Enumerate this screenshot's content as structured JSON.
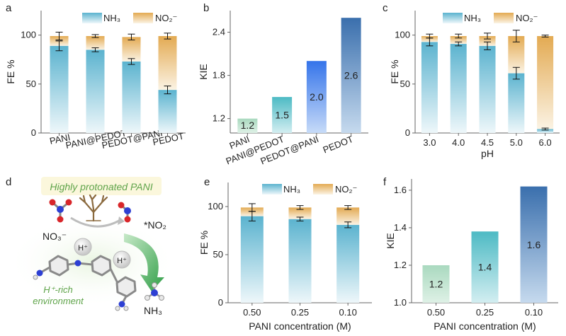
{
  "colors": {
    "nh3_top": "#5bb3cf",
    "nh3_bottom": "#e7f3f8",
    "no2_top": "#e3aa52",
    "no2_bottom": "#fbf1e0",
    "kie_green": "#bfe3cc",
    "kie_teal": "#5fc3c9",
    "kie_blue": "#3b7bea",
    "kie_navy": "#3f79b6",
    "arrow_green": "#3fae55",
    "text_green": "#5fa44a"
  },
  "panel_labels": {
    "a": "a",
    "b": "b",
    "c": "c",
    "d": "d",
    "e": "e",
    "f": "f"
  },
  "legend": {
    "nh3": "NH₃",
    "no2": "NO₂⁻"
  },
  "chart_data": [
    {
      "id": "a",
      "type": "bar",
      "stacked": true,
      "categories": [
        "PANI",
        "PANI@PEDOT",
        "PEDOT@PANI",
        "PEDOT"
      ],
      "series": [
        {
          "name": "NH3",
          "values": [
            89,
            85,
            73,
            44
          ],
          "errors": [
            5,
            2,
            3,
            4
          ]
        },
        {
          "name": "NO2-",
          "values": [
            10,
            14,
            25,
            55
          ],
          "errors": [
            4,
            1.5,
            3,
            3
          ]
        }
      ],
      "ylabel": "FE %",
      "xlabel": "",
      "ylim": [
        0,
        125
      ],
      "yticks": [
        "0",
        "50",
        "100"
      ],
      "legend": "top"
    },
    {
      "id": "b",
      "type": "bar",
      "categories": [
        "PANI",
        "PANI@PEDOT",
        "PEDOT@PANI",
        "PEDOT"
      ],
      "values": [
        1.2,
        1.5,
        2.0,
        2.6
      ],
      "labels": [
        "1.2",
        "1.5",
        "2.0",
        "2.6"
      ],
      "ylabel": "KIE",
      "xlabel": "",
      "ylim": [
        1.0,
        2.7
      ],
      "yticks": [
        "1.2",
        "1.8",
        "2.4"
      ]
    },
    {
      "id": "c",
      "type": "bar",
      "stacked": true,
      "categories": [
        "3.0",
        "4.0",
        "4.5",
        "5.0",
        "6.0"
      ],
      "series": [
        {
          "name": "NH3",
          "values": [
            93,
            91,
            89,
            61,
            4
          ],
          "errors": [
            4,
            2,
            4,
            6,
            1
          ]
        },
        {
          "name": "NO2-",
          "values": [
            6,
            8,
            10,
            38,
            95
          ],
          "errors": [
            2,
            2,
            3,
            6,
            1
          ]
        }
      ],
      "ylabel": "FE %",
      "xlabel": "pH",
      "ylim": [
        0,
        125
      ],
      "yticks": [
        "0",
        "50",
        "100"
      ],
      "legend": "top"
    },
    {
      "id": "e",
      "type": "bar",
      "stacked": true,
      "categories": [
        "0.50",
        "0.25",
        "0.10"
      ],
      "series": [
        {
          "name": "NH3",
          "values": [
            90,
            87,
            81
          ],
          "errors": [
            5,
            2,
            3
          ]
        },
        {
          "name": "NO2-",
          "values": [
            9,
            12,
            18
          ],
          "errors": [
            4,
            2,
            2
          ]
        }
      ],
      "ylabel": "FE %",
      "xlabel": "PANI concentration (M)",
      "ylim": [
        0,
        125
      ],
      "yticks": [
        "0",
        "50",
        "100"
      ],
      "legend": "top"
    },
    {
      "id": "f",
      "type": "bar",
      "categories": [
        "0.50",
        "0.25",
        "0.10"
      ],
      "values": [
        1.2,
        1.38,
        1.62
      ],
      "labels": [
        "1.2",
        "1.4",
        "1.6"
      ],
      "ylabel": "KIE",
      "xlabel": "PANI concentration (M)",
      "ylim": [
        1.0,
        1.66
      ],
      "yticks": [
        "1.0",
        "1.2",
        "1.4",
        "1.6"
      ]
    }
  ],
  "diagram_d": {
    "title": "Highly protonated PANI",
    "no3": "NO₃⁻",
    "no2": "*NO₂",
    "h_plus": "H⁺",
    "env_line1": "H⁺-rich",
    "env_line2": "environment",
    "nh3": "NH₃"
  }
}
